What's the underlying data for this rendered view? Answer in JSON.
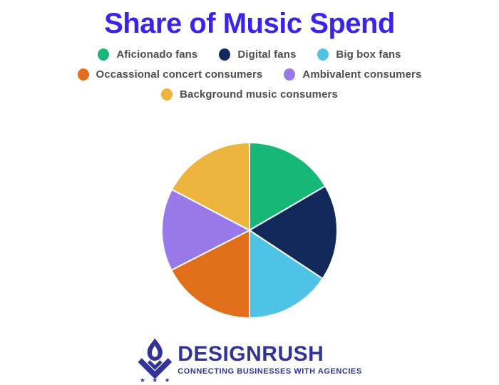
{
  "theme": {
    "background": "#ffffff",
    "title_color": "#3b23ee",
    "legend_text_color": "#4e4e4e",
    "logo_color": "#32329b"
  },
  "chart_data": {
    "type": "pie",
    "title": "Share of Music Spend",
    "labels": [
      "Aficionado fans",
      "Digital fans",
      "Big box fans",
      "Occassional concert consumers",
      "Ambivalent consumers",
      "Background music consumers"
    ],
    "values": [
      16.6,
      17.7,
      15.7,
      17.5,
      15.2,
      17.3
    ],
    "colors": [
      "#17b877",
      "#12275a",
      "#4fc3e6",
      "#e06e1b",
      "#9779ea",
      "#edb53e"
    ],
    "start_angle_deg": 0,
    "direction": "clockwise",
    "slice_border_color": "#ffffff",
    "data_labels_shown": false,
    "legend_position": "top",
    "legend_rows": [
      [
        0,
        1,
        2
      ],
      [
        3,
        4
      ],
      [
        5
      ]
    ]
  },
  "logo": {
    "name": "DESIGNRUSH",
    "tagline": "CONNECTING BUSINESSES WITH AGENCIES",
    "icon": "torch-flame-with-chevron-and-three-stars",
    "stars": "★ ★ ★"
  }
}
